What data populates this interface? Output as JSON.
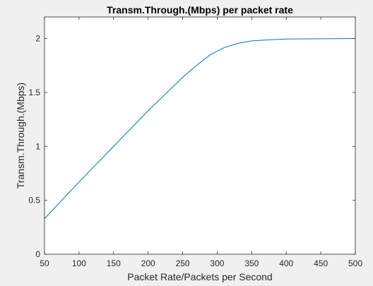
{
  "chart_data": {
    "type": "line",
    "title": "Transm.Through.(Mbps) per packet rate",
    "xlabel": "Packet Rate/Packets per Second",
    "ylabel": "Transm.Through.(Mbps)",
    "xlim": [
      50,
      500
    ],
    "ylim": [
      0,
      2.2
    ],
    "x_ticks": [
      "50",
      "100",
      "150",
      "200",
      "250",
      "300",
      "350",
      "400",
      "450",
      "500"
    ],
    "y_ticks": [
      "0",
      "0.5",
      "1",
      "1.5",
      "2"
    ],
    "grid": false,
    "legend": "none",
    "series": [
      {
        "color": "#0072bd",
        "x": [
          50,
          100,
          150,
          200,
          250,
          270,
          290,
          310,
          330,
          350,
          375,
          400,
          450,
          500
        ],
        "y": [
          0.33,
          0.67,
          1.0,
          1.33,
          1.64,
          1.75,
          1.85,
          1.915,
          1.955,
          1.978,
          1.988,
          1.995,
          1.998,
          2.0
        ]
      }
    ]
  }
}
